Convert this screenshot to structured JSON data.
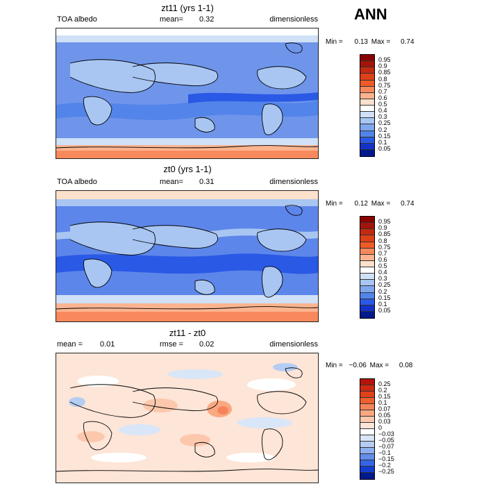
{
  "season_label": "ANN",
  "panels": [
    {
      "title": "zt11 (yrs 1-1)",
      "left_label": "TOA albedo",
      "mean_label": "mean=",
      "mean_value": "0.32",
      "right_label": "dimensionless",
      "min_label": "Min =",
      "min_value": "0.13",
      "max_label": "Max =",
      "max_value": "0.74",
      "colorbar": {
        "levels": [
          "0.95",
          "0.9",
          "0.85",
          "0.8",
          "0.75",
          "0.7",
          "0.6",
          "0.5",
          "0.4",
          "0.3",
          "0.25",
          "0.2",
          "0.15",
          "0.1",
          "0.05"
        ],
        "colors": [
          "#8b0000",
          "#a3140a",
          "#c22a12",
          "#de4018",
          "#f05a28",
          "#f7895c",
          "#fbb48f",
          "#fde1cc",
          "#ffffff",
          "#cfe0f7",
          "#a9c6f2",
          "#7fa7ee",
          "#5384ea",
          "#2a59e5",
          "#1232c8",
          "#001a8c"
        ]
      }
    },
    {
      "title": "zt0 (yrs 1-1)",
      "left_label": "TOA albedo",
      "mean_label": "mean=",
      "mean_value": "0.31",
      "right_label": "dimensionless",
      "min_label": "Min =",
      "min_value": "0.12",
      "max_label": "Max =",
      "max_value": "0.74",
      "colorbar": {
        "levels": [
          "0.95",
          "0.9",
          "0.85",
          "0.8",
          "0.75",
          "0.7",
          "0.6",
          "0.5",
          "0.4",
          "0.3",
          "0.25",
          "0.2",
          "0.15",
          "0.1",
          "0.05"
        ],
        "colors": [
          "#8b0000",
          "#a3140a",
          "#c22a12",
          "#de4018",
          "#f05a28",
          "#f7895c",
          "#fbb48f",
          "#fde1cc",
          "#ffffff",
          "#cfe0f7",
          "#a9c6f2",
          "#7fa7ee",
          "#5384ea",
          "#2a59e5",
          "#1232c8",
          "#001a8c"
        ]
      }
    },
    {
      "title": "zt11 - zt0",
      "left_label": "mean =",
      "left_value": "0.01",
      "rmse_label": "rmse =",
      "rmse_value": "0.02",
      "right_label": "dimensionless",
      "min_label": "Min =",
      "min_value": "−0.06",
      "max_label": "Max =",
      "max_value": "0.08",
      "colorbar": {
        "levels": [
          "0.25",
          "0.2",
          "0.15",
          "0.1",
          "0.07",
          "0.05",
          "0.03",
          "0",
          "−0.03",
          "−0.05",
          "−0.07",
          "−0.1",
          "−0.15",
          "−0.2",
          "−0.25"
        ],
        "colors": [
          "#b3150c",
          "#cc2a12",
          "#e0421a",
          "#ef6030",
          "#f6845a",
          "#faa882",
          "#fcc8ad",
          "#fde5d7",
          "#ffffff",
          "#d9e6f8",
          "#b5cdf3",
          "#8eb0ee",
          "#628dea",
          "#3565e4",
          "#143cd0",
          "#001a8c"
        ]
      }
    }
  ]
}
